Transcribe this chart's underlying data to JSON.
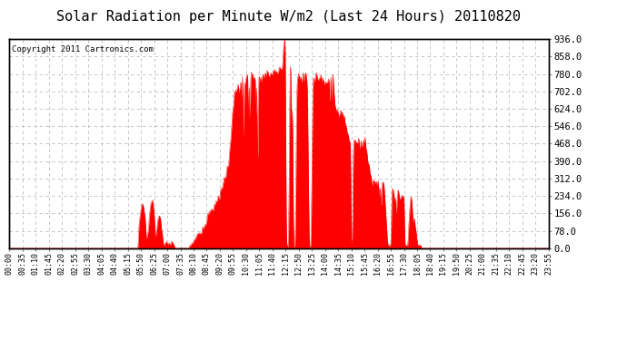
{
  "title": "Solar Radiation per Minute W/m2 (Last 24 Hours) 20110820",
  "copyright_text": "Copyright 2011 Cartronics.com",
  "ylabel_right": [
    "0.0",
    "78.0",
    "156.0",
    "234.0",
    "312.0",
    "390.0",
    "468.0",
    "546.0",
    "624.0",
    "702.0",
    "780.0",
    "858.0",
    "936.0"
  ],
  "yvalues": [
    0,
    78,
    156,
    234,
    312,
    390,
    468,
    546,
    624,
    702,
    780,
    858,
    936
  ],
  "ylim": [
    0,
    936
  ],
  "fill_color": "#ff0000",
  "line_color": "#ff0000",
  "bg_color": "#ffffff",
  "grid_color": "#bbbbbb",
  "dashed_line_color": "#ff0000",
  "x_labels": [
    "00:00",
    "00:35",
    "01:10",
    "01:45",
    "02:20",
    "02:55",
    "03:30",
    "04:05",
    "04:40",
    "05:15",
    "05:50",
    "06:25",
    "07:00",
    "07:35",
    "08:10",
    "08:45",
    "09:20",
    "09:55",
    "10:30",
    "11:05",
    "11:40",
    "12:15",
    "12:50",
    "13:25",
    "14:00",
    "14:35",
    "15:10",
    "15:45",
    "16:20",
    "16:55",
    "17:30",
    "18:05",
    "18:40",
    "19:15",
    "19:50",
    "20:25",
    "21:00",
    "21:35",
    "22:10",
    "22:45",
    "23:20",
    "23:55"
  ],
  "num_points": 1440,
  "title_fontsize": 11
}
